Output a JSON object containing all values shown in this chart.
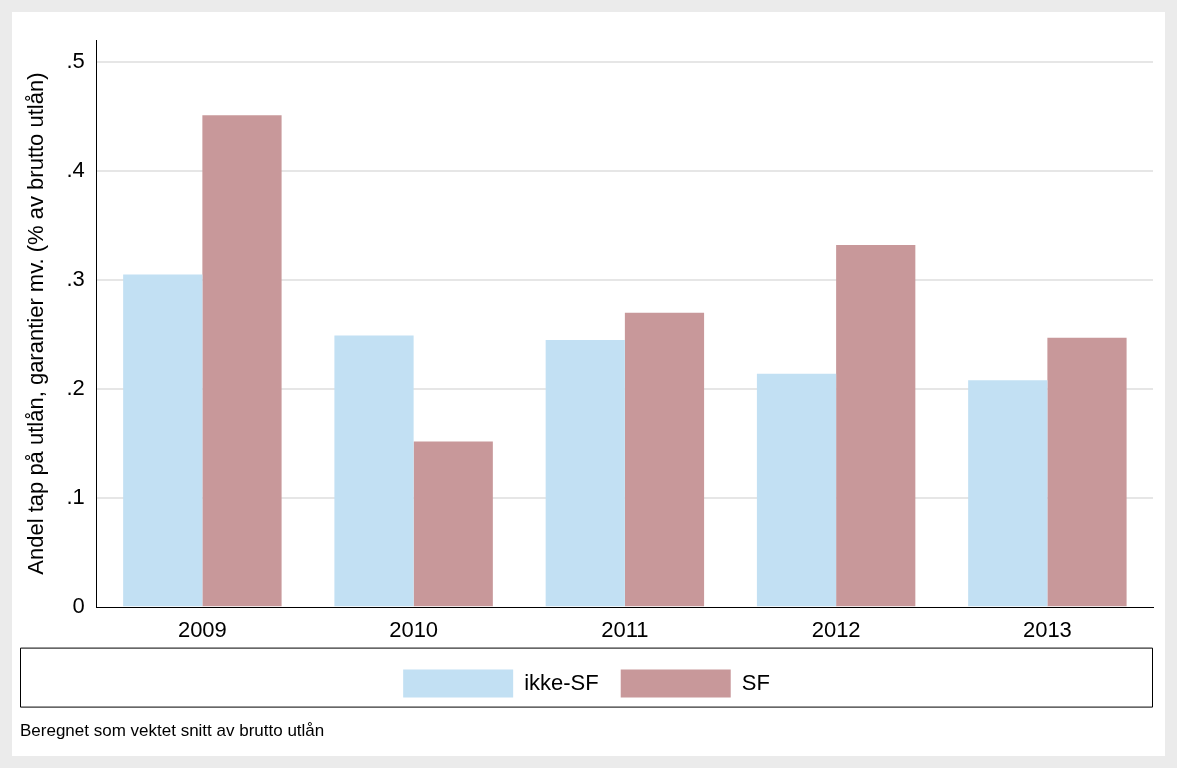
{
  "chart_data": {
    "type": "bar",
    "ylabel": "Andel tap på utlån, garantier mv. (% av brutto utlån)",
    "categories": [
      "2009",
      "2010",
      "2011",
      "2012",
      "2013"
    ],
    "series": [
      {
        "name": "ikke-SF",
        "color": "#c2e0f3",
        "values": [
          0.305,
          0.249,
          0.245,
          0.214,
          0.208
        ]
      },
      {
        "name": "SF",
        "color": "#c8989a",
        "values": [
          0.451,
          0.152,
          0.27,
          0.332,
          0.247
        ]
      }
    ],
    "ylim": [
      0,
      0.52
    ],
    "yticks": [
      0,
      {
        "value": 0.1,
        "label": ".1"
      },
      {
        "value": 0.2,
        "label": ".2"
      },
      {
        "value": 0.3,
        "label": ".3"
      },
      {
        "value": 0.4,
        "label": ".4"
      },
      {
        "value": 0.5,
        "label": ".5"
      }
    ],
    "grid": "y",
    "legend": "bottom",
    "annotations": [
      "Beregnet som vektet snitt av brutto utlån"
    ]
  }
}
